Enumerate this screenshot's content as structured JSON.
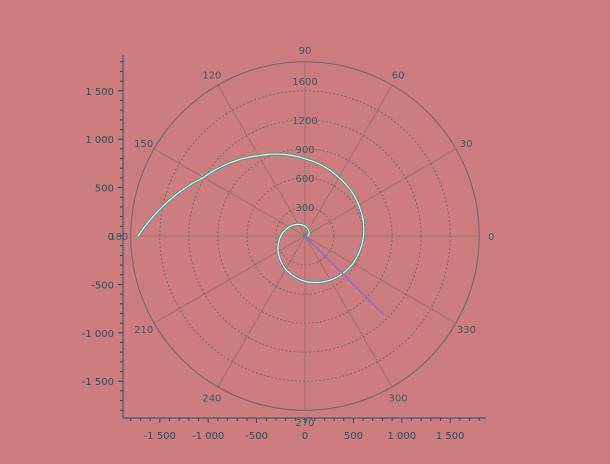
{
  "colors": {
    "background": "#cd7d7d",
    "axis": "#1c5470",
    "polar_grid": "#6e6e6e",
    "polar_label": "#3d5a6c",
    "spiral": "#e6f0f0",
    "spiral_edge": "#4a9a8a",
    "ray": "#8a6ee0"
  },
  "chart_data": {
    "type": "polar-line",
    "title": "",
    "xlabel": "",
    "ylabel": "",
    "xlim": [
      -1850,
      1850
    ],
    "ylim": [
      -1900,
      1900
    ],
    "x_ticks": [
      -1500,
      -1000,
      -500,
      0,
      500,
      1000,
      1500
    ],
    "x_tick_labels": [
      "-1 500",
      "-1 000",
      "-500",
      "0",
      "500",
      "1 000",
      "1 500"
    ],
    "y_ticks": [
      -1500,
      -1000,
      -500,
      0,
      500,
      1000,
      1500
    ],
    "y_tick_labels": [
      "-1 500",
      "-1 000",
      "-500",
      "0",
      "500",
      "1 000",
      "1 500"
    ],
    "radial_ticks": [
      300,
      600,
      900,
      1200,
      1600
    ],
    "radial_tick_labels": [
      "300",
      "600",
      "900",
      "1200",
      "1600"
    ],
    "radial_rings": [
      300,
      600,
      900,
      1200,
      1500,
      1800
    ],
    "outer_radius": 1800,
    "angle_ticks": [
      0,
      30,
      60,
      90,
      120,
      150,
      180,
      210,
      240,
      270,
      300,
      330
    ],
    "angle_tick_labels": [
      "0",
      "30",
      "60",
      "90",
      "120",
      "150",
      "180",
      "210",
      "240",
      "270",
      "300",
      "330"
    ],
    "series": [
      {
        "name": "spiral",
        "theta_deg": [
          0,
          30,
          60,
          90,
          120,
          150,
          180,
          210,
          240,
          270,
          300,
          330,
          360,
          390,
          420,
          450,
          480,
          510,
          540
        ],
        "r": [
          28,
          50,
          72,
          101,
          139,
          188,
          250,
          321,
          398,
          469,
          526,
          570,
          604,
          640,
          697,
          797,
          958,
          1210,
          1725
        ]
      },
      {
        "name": "ray",
        "theta_deg": [
          -45,
          -45
        ],
        "r": [
          0,
          1150
        ]
      }
    ]
  }
}
